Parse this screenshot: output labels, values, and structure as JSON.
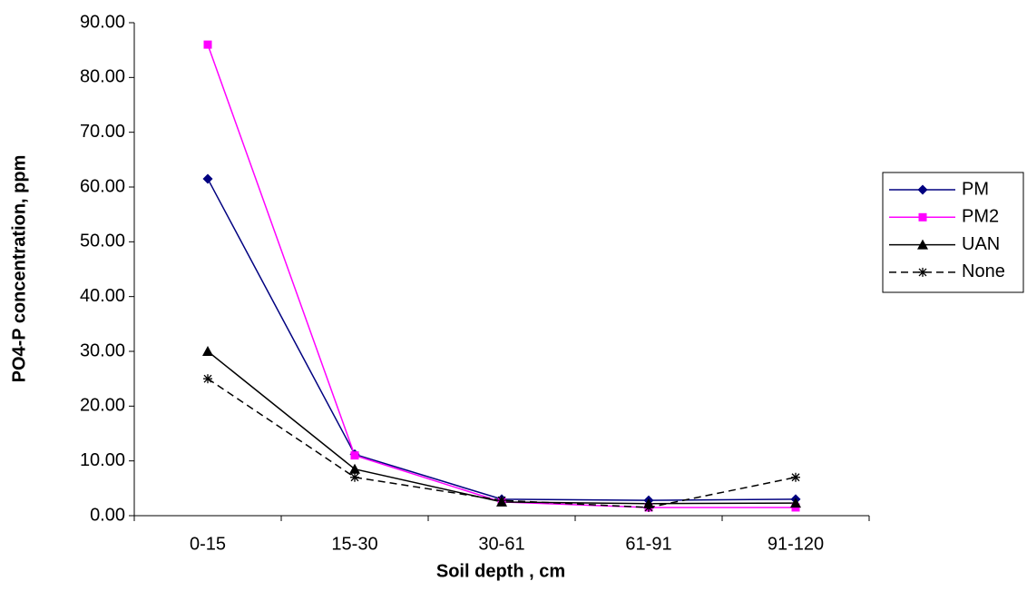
{
  "chart_data": {
    "type": "line",
    "x_label": "Soil depth , cm",
    "y_label": "PO4-P concentration, ppm",
    "categories": [
      "0-15",
      "15-30",
      "30-61",
      "61-91",
      "91-120"
    ],
    "series": [
      {
        "name": "PM",
        "color": "#000080",
        "marker": "diamond",
        "line_style": "solid",
        "values": [
          61.5,
          11.2,
          3.0,
          2.8,
          3.0
        ]
      },
      {
        "name": "PM2",
        "color": "#ff00ff",
        "marker": "square",
        "line_style": "solid",
        "values": [
          86.0,
          11.0,
          2.5,
          1.5,
          1.5
        ]
      },
      {
        "name": "UAN",
        "color": "#000000",
        "marker": "triangle",
        "line_style": "solid",
        "values": [
          30.0,
          8.5,
          2.5,
          2.2,
          2.3
        ]
      },
      {
        "name": "None",
        "color": "#000000",
        "marker": "asterisk",
        "line_style": "dashed",
        "values": [
          25.0,
          7.0,
          2.8,
          1.5,
          7.0
        ]
      }
    ],
    "ylim": [
      0,
      90
    ],
    "yticks": [
      {
        "value": 0,
        "label": "0.00"
      },
      {
        "value": 10,
        "label": "10.00"
      },
      {
        "value": 20,
        "label": "20.00"
      },
      {
        "value": 30,
        "label": "30.00"
      },
      {
        "value": 40,
        "label": "40.00"
      },
      {
        "value": 50,
        "label": "50.00"
      },
      {
        "value": 60,
        "label": "60.00"
      },
      {
        "value": 70,
        "label": "70.00"
      },
      {
        "value": 80,
        "label": "80.00"
      },
      {
        "value": 90,
        "label": "90.00"
      }
    ],
    "legend": "right"
  }
}
